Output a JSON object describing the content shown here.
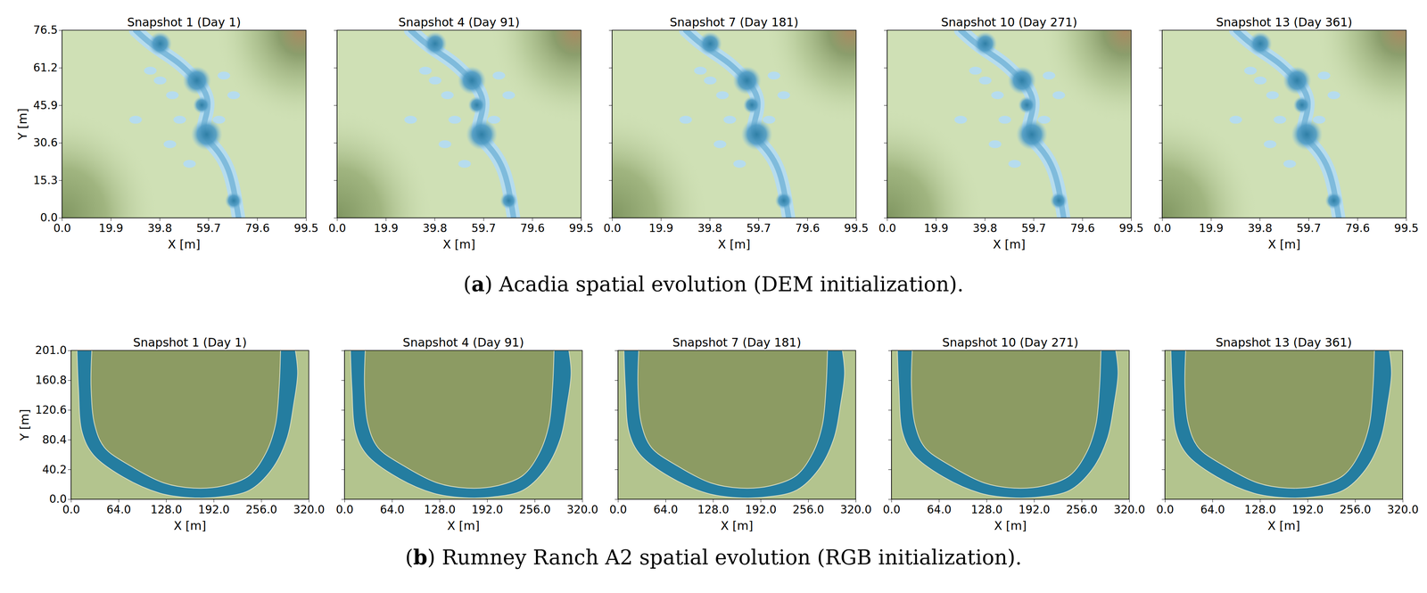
{
  "chart_data": [
    {
      "type": "map",
      "title": "Acadia spatial evolution (DEM initialization).",
      "panel_label": "(a)",
      "subplots": [
        {
          "title": "Snapshot 1 (Day 1)"
        },
        {
          "title": "Snapshot 4 (Day 91)"
        },
        {
          "title": "Snapshot 7 (Day 181)"
        },
        {
          "title": "Snapshot 10 (Day 271)"
        },
        {
          "title": "Snapshot 13 (Day 361)"
        }
      ],
      "xlabel": "X [m]",
      "ylabel": "Y [m]",
      "xlim": [
        0,
        99.5
      ],
      "xticks": [
        {
          "value": 0,
          "label": "0.0"
        },
        19.9,
        39.8,
        59.7,
        79.6,
        99.5
      ],
      "ylim": [
        0,
        76.5
      ],
      "yticks": [
        {
          "value": 0,
          "label": "0.0"
        },
        15.3,
        30.6,
        45.9,
        61.2,
        76.5
      ]
    },
    {
      "type": "map",
      "title": "Rumney Ranch A2 spatial evolution (RGB initialization).",
      "panel_label": "(b)",
      "subplots": [
        {
          "title": "Snapshot 1 (Day 1)"
        },
        {
          "title": "Snapshot 4 (Day 91)"
        },
        {
          "title": "Snapshot 7 (Day 181)"
        },
        {
          "title": "Snapshot 10 (Day 271)"
        },
        {
          "title": "Snapshot 13 (Day 361)"
        }
      ],
      "xlabel": "X [m]",
      "ylabel": "Y [m]",
      "xlim": [
        0,
        320
      ],
      "xticks": [
        {
          "value": 0,
          "label": "0.0"
        },
        {
          "value": 64,
          "label": "64.0"
        },
        {
          "value": 128,
          "label": "128.0"
        },
        {
          "value": 192,
          "label": "192.0"
        },
        {
          "value": 256,
          "label": "256.0"
        },
        {
          "value": 320,
          "label": "320.0"
        }
      ],
      "ylim": [
        0,
        201
      ],
      "yticks": [
        {
          "value": 0,
          "label": "0.0"
        },
        40.2,
        80.4,
        120.6,
        160.8,
        {
          "value": 201,
          "label": "201.0"
        }
      ]
    }
  ]
}
